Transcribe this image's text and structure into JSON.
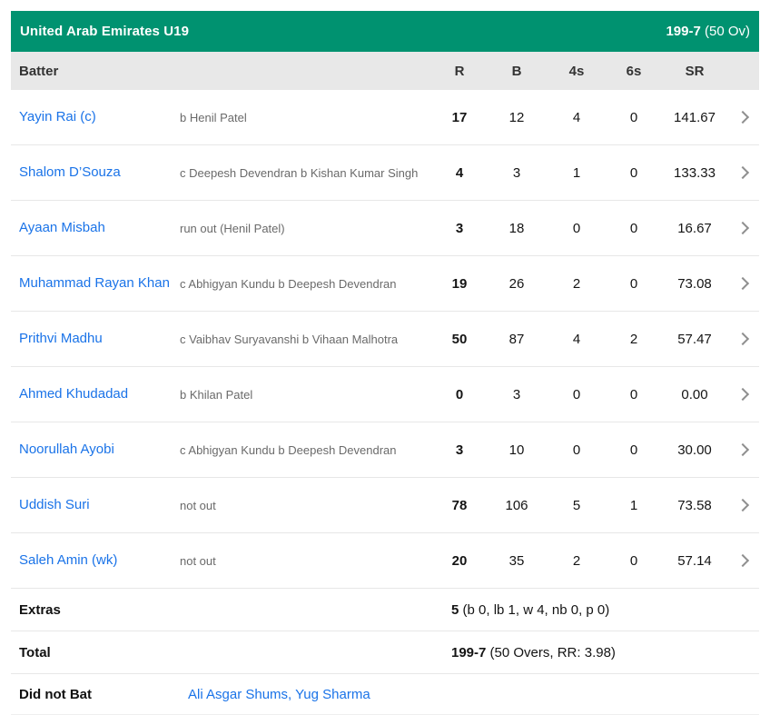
{
  "header": {
    "team": "United Arab Emirates U19",
    "score_bold": "199-7",
    "score_rest": " (50 Ov)"
  },
  "columns": {
    "batter": "Batter",
    "runs": "R",
    "balls": "B",
    "fours": "4s",
    "sixes": "6s",
    "strike_rate": "SR"
  },
  "batters": [
    {
      "name": "Yayin Rai (c)",
      "dismissal": "b Henil Patel",
      "r": "17",
      "b": "12",
      "fours": "4",
      "sixes": "0",
      "sr": "141.67"
    },
    {
      "name": "Shalom D’Souza",
      "dismissal": "c Deepesh Devendran b Kishan Kumar Singh",
      "r": "4",
      "b": "3",
      "fours": "1",
      "sixes": "0",
      "sr": "133.33"
    },
    {
      "name": "Ayaan Misbah",
      "dismissal": "run out (Henil Patel)",
      "r": "3",
      "b": "18",
      "fours": "0",
      "sixes": "0",
      "sr": "16.67"
    },
    {
      "name": "Muhammad Rayan Khan",
      "dismissal": "c Abhigyan Kundu b Deepesh Devendran",
      "r": "19",
      "b": "26",
      "fours": "2",
      "sixes": "0",
      "sr": "73.08"
    },
    {
      "name": "Prithvi Madhu",
      "dismissal": "c Vaibhav Suryavanshi b Vihaan Malhotra",
      "r": "50",
      "b": "87",
      "fours": "4",
      "sixes": "2",
      "sr": "57.47"
    },
    {
      "name": "Ahmed Khudadad",
      "dismissal": "b Khilan Patel",
      "r": "0",
      "b": "3",
      "fours": "0",
      "sixes": "0",
      "sr": "0.00"
    },
    {
      "name": "Noorullah Ayobi",
      "dismissal": "c Abhigyan Kundu b Deepesh Devendran",
      "r": "3",
      "b": "10",
      "fours": "0",
      "sixes": "0",
      "sr": "30.00"
    },
    {
      "name": "Uddish Suri",
      "dismissal": "not out",
      "r": "78",
      "b": "106",
      "fours": "5",
      "sixes": "1",
      "sr": "73.58"
    },
    {
      "name": "Saleh Amin (wk)",
      "dismissal": "not out",
      "r": "20",
      "b": "35",
      "fours": "2",
      "sixes": "0",
      "sr": "57.14"
    }
  ],
  "extras": {
    "label": "Extras",
    "value_bold": "5",
    "value_rest": " (b 0, lb 1, w 4, nb 0, p 0)"
  },
  "total": {
    "label": "Total",
    "value_bold": "199-7",
    "value_rest": " (50 Overs, RR: 3.98)"
  },
  "did_not_bat": {
    "label": "Did not Bat",
    "players": "Ali Asgar Shums, Yug Sharma"
  },
  "colors": {
    "accent_green": "#009270",
    "link_blue": "#1a73e8",
    "header_gray": "#e8e8e8"
  },
  "icons": {
    "chevron_right": "chevron-right"
  }
}
